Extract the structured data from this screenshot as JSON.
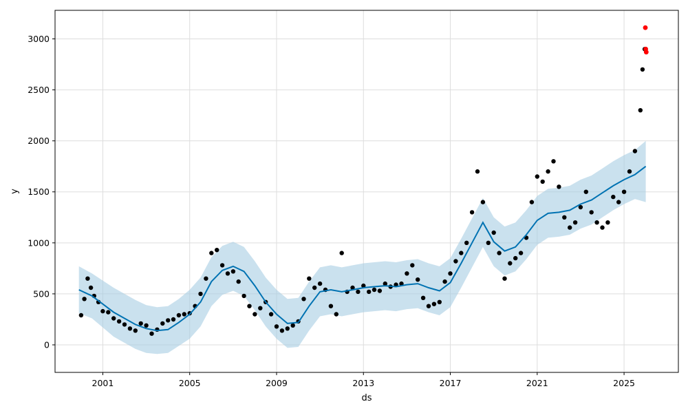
{
  "chart_data": {
    "type": "scatter",
    "title": "",
    "xlabel": "ds",
    "ylabel": "y",
    "xlim": [
      1998.8,
      2027.5
    ],
    "ylim": [
      -270,
      3280
    ],
    "x_ticks": [
      {
        "value": 2001,
        "label": "2001"
      },
      {
        "value": 2005,
        "label": "2005"
      },
      {
        "value": 2009,
        "label": "2009"
      },
      {
        "value": 2013,
        "label": "2013"
      },
      {
        "value": 2017,
        "label": "2017"
      },
      {
        "value": 2021,
        "label": "2021"
      },
      {
        "value": 2025,
        "label": "2025"
      }
    ],
    "y_ticks": [
      {
        "value": 0,
        "label": "0"
      },
      {
        "value": 500,
        "label": "500"
      },
      {
        "value": 1000,
        "label": "1000"
      },
      {
        "value": 1500,
        "label": "1500"
      },
      {
        "value": 2000,
        "label": "2000"
      },
      {
        "value": 2500,
        "label": "2500"
      },
      {
        "value": 3000,
        "label": "3000"
      }
    ],
    "grid": true,
    "colors": {
      "observed": "#000000",
      "highlighted": "#ff0000",
      "forecast": "#0072B2",
      "interval": "#a6cde3"
    },
    "observed": {
      "x": [
        2000.0,
        2000.15,
        2000.3,
        2000.45,
        2000.6,
        2000.8,
        2001.0,
        2001.25,
        2001.5,
        2001.75,
        2002.0,
        2002.25,
        2002.5,
        2002.75,
        2003.0,
        2003.25,
        2003.5,
        2003.75,
        2004.0,
        2004.25,
        2004.5,
        2004.75,
        2005.0,
        2005.25,
        2005.5,
        2005.75,
        2006.0,
        2006.25,
        2006.5,
        2006.75,
        2007.0,
        2007.25,
        2007.5,
        2007.75,
        2008.0,
        2008.25,
        2008.5,
        2008.75,
        2009.0,
        2009.25,
        2009.5,
        2009.75,
        2010.0,
        2010.25,
        2010.5,
        2010.75,
        2011.0,
        2011.25,
        2011.5,
        2011.75,
        2012.0,
        2012.25,
        2012.5,
        2012.75,
        2013.0,
        2013.25,
        2013.5,
        2013.75,
        2014.0,
        2014.25,
        2014.5,
        2014.75,
        2015.0,
        2015.25,
        2015.5,
        2015.75,
        2016.0,
        2016.25,
        2016.5,
        2016.75,
        2017.0,
        2017.25,
        2017.5,
        2017.75,
        2018.0,
        2018.25,
        2018.5,
        2018.75,
        2019.0,
        2019.25,
        2019.5,
        2019.75,
        2020.0,
        2020.25,
        2020.5,
        2020.75,
        2021.0,
        2021.25,
        2021.5,
        2021.75,
        2022.0,
        2022.25,
        2022.5,
        2022.75,
        2023.0,
        2023.25,
        2023.5,
        2023.75,
        2024.0,
        2024.25,
        2024.5,
        2024.75,
        2025.0,
        2025.25,
        2025.5,
        2025.75,
        2025.85,
        2025.95
      ],
      "y": [
        290,
        450,
        650,
        560,
        480,
        420,
        330,
        320,
        260,
        230,
        200,
        160,
        140,
        210,
        190,
        110,
        150,
        210,
        240,
        250,
        290,
        300,
        310,
        380,
        500,
        650,
        900,
        930,
        780,
        700,
        720,
        620,
        480,
        380,
        300,
        360,
        420,
        300,
        180,
        140,
        160,
        190,
        230,
        450,
        650,
        560,
        600,
        540,
        380,
        300,
        900,
        520,
        560,
        520,
        580,
        520,
        540,
        530,
        600,
        570,
        590,
        600,
        700,
        780,
        640,
        460,
        380,
        400,
        420,
        620,
        700,
        820,
        900,
        1000,
        1300,
        1700,
        1400,
        1000,
        1100,
        900,
        650,
        800,
        850,
        900,
        1050,
        1400,
        1650,
        1600,
        1700,
        1800,
        1550,
        1250,
        1150,
        1200,
        1350,
        1500,
        1300,
        1200,
        1150,
        1200,
        1450,
        1400,
        1500,
        1700,
        1900,
        2300,
        2700,
        2900
      ]
    },
    "highlighted": {
      "x": [
        2025.98,
        2026.0,
        2026.02
      ],
      "y": [
        3110,
        2900,
        2870
      ]
    },
    "forecast": {
      "x": [
        1999.9,
        2000.5,
        2001.0,
        2001.5,
        2002.0,
        2002.5,
        2003.0,
        2003.5,
        2004.0,
        2004.5,
        2005.0,
        2005.5,
        2006.0,
        2006.5,
        2007.0,
        2007.5,
        2008.0,
        2008.5,
        2009.0,
        2009.5,
        2010.0,
        2010.5,
        2011.0,
        2011.5,
        2012.0,
        2012.5,
        2013.0,
        2013.5,
        2014.0,
        2014.5,
        2015.0,
        2015.5,
        2016.0,
        2016.5,
        2017.0,
        2017.5,
        2018.0,
        2018.5,
        2019.0,
        2019.5,
        2020.0,
        2020.5,
        2021.0,
        2021.5,
        2022.0,
        2022.5,
        2023.0,
        2023.5,
        2024.0,
        2024.5,
        2025.0,
        2025.5,
        2026.0
      ],
      "y": [
        540,
        480,
        400,
        320,
        260,
        200,
        160,
        140,
        150,
        220,
        300,
        420,
        620,
        730,
        770,
        720,
        580,
        420,
        300,
        210,
        220,
        380,
        520,
        540,
        520,
        540,
        560,
        570,
        580,
        570,
        590,
        600,
        560,
        530,
        610,
        800,
        1000,
        1200,
        1010,
        920,
        960,
        1080,
        1220,
        1290,
        1300,
        1320,
        1380,
        1420,
        1490,
        1560,
        1620,
        1670,
        1750
      ]
    },
    "interval_upper": [
      770,
      700,
      630,
      560,
      500,
      440,
      390,
      370,
      380,
      450,
      540,
      660,
      860,
      970,
      1010,
      960,
      820,
      660,
      540,
      450,
      460,
      620,
      760,
      780,
      760,
      780,
      800,
      810,
      820,
      810,
      830,
      840,
      800,
      770,
      850,
      1040,
      1240,
      1440,
      1250,
      1160,
      1200,
      1320,
      1460,
      1530,
      1540,
      1560,
      1620,
      1660,
      1730,
      1800,
      1860,
      1910,
      2000
    ],
    "interval_lower": [
      310,
      260,
      170,
      80,
      20,
      -40,
      -80,
      -90,
      -80,
      -10,
      60,
      180,
      380,
      490,
      530,
      480,
      340,
      180,
      60,
      -30,
      -20,
      140,
      280,
      300,
      280,
      300,
      320,
      330,
      340,
      330,
      350,
      360,
      320,
      290,
      370,
      560,
      760,
      960,
      770,
      680,
      720,
      840,
      980,
      1050,
      1060,
      1080,
      1140,
      1180,
      1250,
      1320,
      1380,
      1430,
      1400
    ]
  }
}
